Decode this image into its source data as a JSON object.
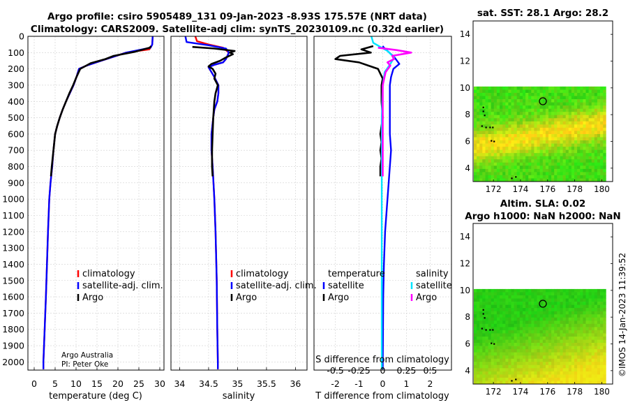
{
  "title_line1": "Argo profile: csiro 5905489_131 09-Jan-2023 -8.93S 175.57E (NRT data)",
  "title_line2": "Climatology: CARS2009. Satellite-adj clim: synTS_20230109.nc (0.32d earlier)",
  "depth_ticks": [
    "0",
    "100",
    "200",
    "300",
    "400",
    "500",
    "600",
    "700",
    "800",
    "900",
    "1000",
    "1100",
    "1200",
    "1300",
    "1400",
    "1500",
    "1600",
    "1700",
    "1800",
    "1900",
    "2000"
  ],
  "colors": {
    "climatology": "#ff0000",
    "satadj": "#0000ff",
    "argo": "#000000",
    "t_satellite": "#0000ff",
    "s_satellite": "#00e5ff",
    "s_argo": "#ff00ff"
  },
  "credit": {
    "line1": "Argo Australia",
    "line2": "PI: Peter Oke"
  },
  "timestamp": "©IMOS 14-Jan-2023 11:39:52",
  "chart_data": [
    {
      "type": "line",
      "name": "temperature-panel",
      "xlabel": "temperature (deg C)",
      "ylabel": "depth",
      "xlim": [
        -1.5,
        31
      ],
      "ylim": [
        2050,
        0
      ],
      "xticks": [
        0,
        5,
        10,
        15,
        20,
        25,
        30
      ],
      "xtick_labels": [
        "0",
        "5",
        "10",
        "15",
        "20",
        "25",
        "30"
      ],
      "legend": [
        "climatology",
        "satellite-adj. clim.",
        "Argo"
      ],
      "series": [
        {
          "name": "climatology",
          "color": "#ff0000",
          "x": [
            28.3,
            28.2,
            27.5,
            22,
            16,
            12.5,
            10.7,
            10.1,
            9.4,
            8.5,
            7.6,
            6.8,
            6.1,
            5.5,
            5.0,
            4.6,
            4.3,
            3.9,
            3.6,
            3.3,
            3.05,
            2.8,
            2.5,
            2.2,
            2.2
          ],
          "y": [
            0,
            50,
            80,
            100,
            150,
            180,
            200,
            250,
            300,
            350,
            400,
            450,
            500,
            550,
            600,
            700,
            800,
            900,
            1000,
            1200,
            1400,
            1600,
            1800,
            2000,
            2045
          ]
        },
        {
          "name": "satellite-adj. clim.",
          "color": "#0000ff",
          "x": [
            28.3,
            28.2,
            27.8,
            22,
            16,
            12.5,
            10.7,
            10.1,
            9.4,
            8.5,
            7.6,
            6.8,
            6.1,
            5.5,
            5.0,
            4.6,
            4.3,
            3.9,
            3.6,
            3.3,
            3.05,
            2.8,
            2.5,
            2.2,
            2.2
          ],
          "y": [
            0,
            50,
            70,
            100,
            150,
            180,
            200,
            250,
            300,
            350,
            400,
            450,
            500,
            550,
            600,
            700,
            800,
            900,
            1000,
            1200,
            1400,
            1600,
            1800,
            2000,
            2045
          ]
        },
        {
          "name": "Argo",
          "color": "#000000",
          "x": [
            27.9,
            27.6,
            24,
            19,
            17,
            13.5,
            11,
            10.1,
            9.3,
            8.4,
            7.6,
            6.8,
            6.1,
            5.5,
            5.0,
            4.6,
            4.2,
            4.0
          ],
          "y": [
            60,
            70,
            95,
            120,
            140,
            165,
            200,
            250,
            300,
            350,
            400,
            450,
            500,
            550,
            600,
            700,
            800,
            860
          ]
        }
      ]
    },
    {
      "type": "line",
      "name": "salinity-panel",
      "xlabel": "salinity",
      "xlim": [
        33.85,
        36.2
      ],
      "ylim": [
        2050,
        0
      ],
      "xticks": [
        34,
        34.5,
        35,
        35.5,
        36
      ],
      "xtick_labels": [
        "34",
        "34.5",
        "35",
        "35.5",
        "36"
      ],
      "legend": [
        "climatology",
        "satellite-adj. clim.",
        "Argo"
      ],
      "series": [
        {
          "name": "climatology",
          "color": "#ff0000",
          "x": [
            34.27,
            34.3,
            34.5,
            34.75,
            34.85,
            34.8,
            34.75,
            34.6,
            34.5,
            34.6,
            34.67,
            34.67,
            34.65,
            34.6,
            34.58,
            34.55,
            34.55,
            34.57,
            34.6,
            34.62,
            34.64,
            34.65,
            34.66,
            34.66
          ],
          "y": [
            0,
            30,
            50,
            70,
            100,
            140,
            160,
            175,
            190,
            250,
            300,
            350,
            400,
            450,
            500,
            600,
            700,
            800,
            1000,
            1200,
            1500,
            1800,
            2000,
            2045
          ]
        },
        {
          "name": "satellite-adj. clim.",
          "color": "#0000ff",
          "x": [
            34.1,
            34.12,
            34.5,
            34.8,
            34.85,
            34.8,
            34.75,
            34.6,
            34.5,
            34.6,
            34.67,
            34.67,
            34.65,
            34.6,
            34.58,
            34.55,
            34.55,
            34.57,
            34.6,
            34.62,
            34.64,
            34.65,
            34.66,
            34.66
          ],
          "y": [
            0,
            35,
            55,
            75,
            100,
            140,
            160,
            175,
            190,
            250,
            300,
            350,
            400,
            450,
            500,
            600,
            700,
            800,
            1000,
            1200,
            1500,
            1800,
            2000,
            2045
          ]
        },
        {
          "name": "Argo",
          "color": "#000000",
          "x": [
            34.22,
            34.6,
            34.95,
            34.87,
            34.92,
            34.8,
            34.7,
            34.55,
            34.5,
            34.57,
            34.62,
            34.6,
            34.66,
            34.62,
            34.6,
            34.58,
            34.57,
            34.56,
            34.56,
            34.57
          ],
          "y": [
            65,
            75,
            90,
            100,
            110,
            130,
            150,
            170,
            185,
            200,
            230,
            260,
            300,
            350,
            400,
            500,
            600,
            700,
            800,
            860
          ]
        }
      ]
    },
    {
      "type": "line",
      "name": "difference-panel",
      "xlabel": "T difference from climatology",
      "xlabel_top": "S difference from climatology",
      "xlim": [
        -2.9,
        2.9
      ],
      "ylim": [
        2050,
        0
      ],
      "xticks": [
        -2,
        -1,
        0,
        1,
        2
      ],
      "xtick_labels": [
        "-2",
        "-1",
        "0",
        "1",
        "2"
      ],
      "s_ticks": [
        -0.5,
        -0.25,
        0,
        0.25,
        0.5
      ],
      "s_tick_labels": [
        "-0.5",
        "-0.25",
        "0",
        "0.25",
        "0.5"
      ],
      "s_scale": 4,
      "legend_headers": [
        "temperature",
        "salinity"
      ],
      "legend": [
        "satellite",
        "Argo",
        "satellite",
        "Argo"
      ],
      "series": [
        {
          "name": "temperature satellite",
          "color": "#0000ff",
          "x": [
            0,
            0.05,
            0.5,
            0.7,
            0.45,
            0.35,
            0.3,
            0.3,
            0.3,
            0.3,
            0.35,
            0.3,
            0.25,
            0.2,
            0.15,
            0.1,
            0.05,
            0.02,
            0
          ],
          "y": [
            60,
            70,
            130,
            170,
            200,
            250,
            300,
            400,
            500,
            600,
            700,
            800,
            900,
            1000,
            1100,
            1200,
            1400,
            1600,
            2045
          ]
        },
        {
          "name": "temperature Argo",
          "color": "#000000",
          "x": [
            -0.4,
            -0.9,
            -0.5,
            -1.8,
            -2.0,
            -1.0,
            -0.6,
            -0.2,
            -0.1,
            0,
            -0.05,
            -0.05,
            0,
            -0.05,
            -0.1,
            -0.05,
            -0.1,
            -0.05,
            -0.1,
            -0.1
          ],
          "y": [
            60,
            80,
            100,
            120,
            140,
            160,
            180,
            200,
            230,
            260,
            300,
            400,
            500,
            550,
            600,
            650,
            700,
            750,
            800,
            860
          ]
        },
        {
          "name": "salinity satellite",
          "color": "#00e5ff",
          "x": [
            -0.12,
            -0.1,
            0.05,
            0.12,
            0.08,
            0.02,
            0,
            -0.01,
            -0.01,
            -0.01,
            -0.01
          ],
          "y": [
            0,
            40,
            90,
            130,
            170,
            220,
            300,
            500,
            800,
            1200,
            2045
          ]
        },
        {
          "name": "salinity Argo",
          "color": "#ff00ff",
          "x": [
            -0.05,
            0.15,
            0.3,
            0.1,
            0.12,
            0.05,
            0.08,
            0.03,
            0,
            0,
            0
          ],
          "y": [
            70,
            85,
            100,
            120,
            140,
            160,
            180,
            220,
            300,
            500,
            860
          ]
        }
      ]
    }
  ],
  "maps": [
    {
      "name": "sst-map",
      "title": "sat. SST: 28.1 Argo: 28.2",
      "subtitle": "",
      "yticks": [
        "14",
        "12",
        "10",
        "8",
        "6",
        "4"
      ],
      "xticks": [
        "172",
        "174",
        "176",
        "178",
        "180"
      ]
    },
    {
      "name": "sla-map",
      "title": "Altim. SLA: 0.02",
      "subtitle": "Argo h1000: NaN h2000: NaN",
      "yticks": [
        "14",
        "12",
        "10",
        "8",
        "6",
        "4"
      ],
      "xticks": [
        "172",
        "174",
        "176",
        "178",
        "180"
      ]
    }
  ]
}
